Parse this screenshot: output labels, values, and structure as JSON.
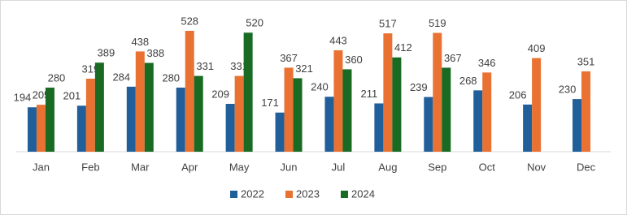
{
  "chart_data": {
    "type": "bar",
    "categories": [
      "Jan",
      "Feb",
      "Mar",
      "Apr",
      "May",
      "Jun",
      "Jul",
      "Aug",
      "Sep",
      "Oct",
      "Nov",
      "Dec"
    ],
    "series": [
      {
        "name": "2022",
        "color": "#215f9a",
        "values": [
          194,
          201,
          284,
          280,
          209,
          171,
          240,
          211,
          239,
          268,
          206,
          230
        ]
      },
      {
        "name": "2023",
        "color": "#e97132",
        "values": [
          205,
          319,
          438,
          528,
          331,
          367,
          443,
          517,
          519,
          346,
          409,
          351
        ]
      },
      {
        "name": "2024",
        "color": "#196b24",
        "values": [
          280,
          389,
          388,
          331,
          520,
          321,
          360,
          412,
          367,
          null,
          null,
          null
        ]
      }
    ],
    "legend": "bottom"
  }
}
